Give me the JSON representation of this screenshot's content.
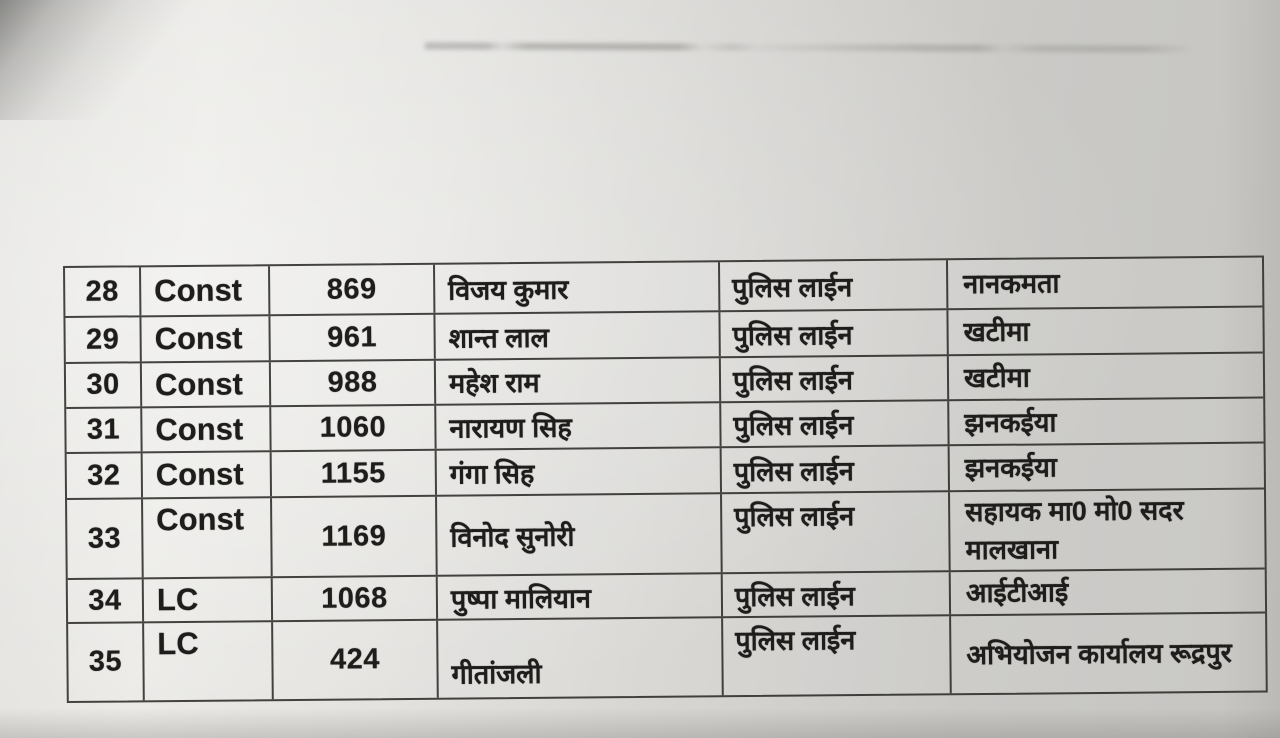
{
  "colors": {
    "paper_light": "#ebeae7",
    "paper_dark": "#c6c5c2",
    "ink": "#1e1d1b",
    "table_line": "#262421"
  },
  "table": {
    "rows": [
      {
        "sl": "28",
        "rank": "Const",
        "badge": "869",
        "name": "विजय कुमार",
        "posting": "पुलिस लाईन",
        "location": "नानकमता"
      },
      {
        "sl": "29",
        "rank": "Const",
        "badge": "961",
        "name": "शान्त लाल",
        "posting": "पुलिस लाईन",
        "location": "खटीमा"
      },
      {
        "sl": "30",
        "rank": "Const",
        "badge": "988",
        "name": "महेश राम",
        "posting": "पुलिस लाईन",
        "location": "खटीमा"
      },
      {
        "sl": "31",
        "rank": "Const",
        "badge": "1060",
        "name": "नारायण सिह",
        "posting": "पुलिस लाईन",
        "location": "झनकईया"
      },
      {
        "sl": "32",
        "rank": "Const",
        "badge": "1155",
        "name": "गंगा सिह",
        "posting": "पुलिस लाईन",
        "location": "झनकईया"
      },
      {
        "sl": "33",
        "rank": "Const",
        "badge": "1169",
        "name": "विनोद सुनोरी",
        "posting": "पुलिस लाईन",
        "location": "सहायक मा0 मो0 सदर मालखाना"
      },
      {
        "sl": "34",
        "rank": "LC",
        "badge": "1068",
        "name": "पुष्पा मालियान",
        "posting": "पुलिस लाईन",
        "location": "आईटीआई"
      },
      {
        "sl": "35",
        "rank": "LC",
        "badge": "424",
        "name": "गीतांजली",
        "posting": "पुलिस लाईन",
        "location": "अभियोजन कार्यालय रूद्रपुर"
      }
    ]
  }
}
